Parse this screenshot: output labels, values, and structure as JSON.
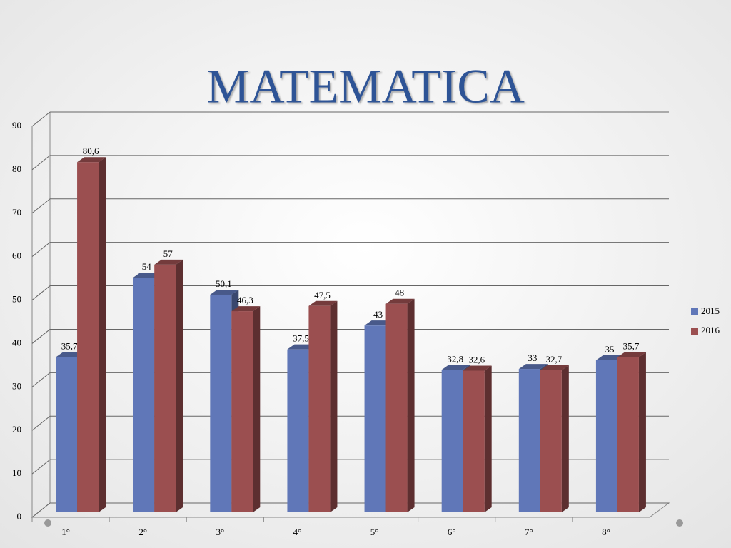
{
  "chart_data": {
    "type": "bar",
    "title": "MATEMATICA",
    "categories": [
      "1°",
      "2°",
      "3°",
      "4°",
      "5°",
      "6°",
      "7°",
      "8°"
    ],
    "series": [
      {
        "name": "2015",
        "color": "#6077b8",
        "values": [
          35.7,
          54,
          50.1,
          37.5,
          43,
          32.8,
          33,
          35
        ],
        "value_labels": [
          "35,7",
          "54",
          "50,1",
          "37,5",
          "43",
          "32,8",
          "33",
          "35"
        ]
      },
      {
        "name": "2016",
        "color": "#9b4f50",
        "values": [
          80.6,
          57,
          46.3,
          47.5,
          48,
          32.6,
          32.7,
          35.7
        ],
        "value_labels": [
          "80,6",
          "57",
          "46,3",
          "47,5",
          "48",
          "32,6",
          "32,7",
          "35,7"
        ]
      }
    ],
    "ylim": [
      0,
      90
    ],
    "yticks": [
      0,
      10,
      20,
      30,
      40,
      50,
      60,
      70,
      80,
      90
    ],
    "grid": true,
    "legend": "right"
  }
}
